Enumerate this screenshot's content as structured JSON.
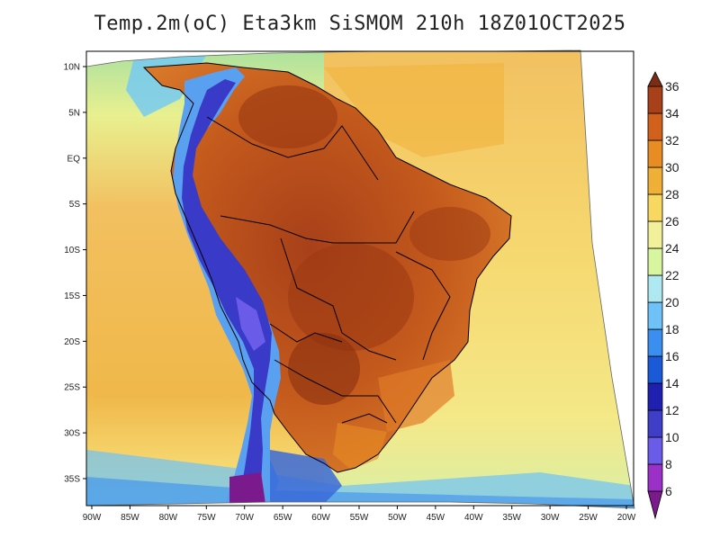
{
  "title": "Temp.2m(oC) Eta3km SiSMOM 210h 18Z01OCT2025",
  "lon_labels": [
    "90W",
    "85W",
    "80W",
    "75W",
    "70W",
    "65W",
    "60W",
    "55W",
    "50W",
    "45W",
    "40W",
    "35W",
    "30W",
    "25W",
    "20W"
  ],
  "lat_labels": [
    "10N",
    "5N",
    "EQ",
    "5S",
    "10S",
    "15S",
    "20S",
    "25S",
    "30S",
    "35S"
  ],
  "colorbar": {
    "labels": [
      "6",
      "8",
      "10",
      "12",
      "14",
      "16",
      "18",
      "20",
      "22",
      "24",
      "26",
      "28",
      "30",
      "32",
      "34",
      "36"
    ],
    "colors": [
      "#7a1a8c",
      "#9b30c8",
      "#6a5ce8",
      "#3e3ec8",
      "#2020b0",
      "#1a5ad8",
      "#3a8ef0",
      "#6ec2f8",
      "#aee8f0",
      "#d8f5a0",
      "#f2f09a",
      "#f8d860",
      "#f0b038",
      "#e88c24",
      "#d0601c",
      "#a8401a",
      "#7a2c14"
    ],
    "min": 6,
    "max": 36,
    "step": 2,
    "unit": "oC"
  },
  "map": {
    "projection": "lambert-like",
    "lon_range": [
      -90,
      -20
    ],
    "lat_range": [
      -38,
      12
    ],
    "palette": {
      "ocean_warm": "#f2c060",
      "ocean_mid": "#f6d870",
      "ocean_cool": "#e8f090",
      "ocean_cold": "#a8e0a0",
      "land_hot": "#b04a14",
      "land_warm": "#d46a20",
      "andes_high": "#2a2ac8",
      "andes_mid": "#5aa0f0",
      "patagonia": "#3a6ad8",
      "border": "#000000"
    }
  }
}
